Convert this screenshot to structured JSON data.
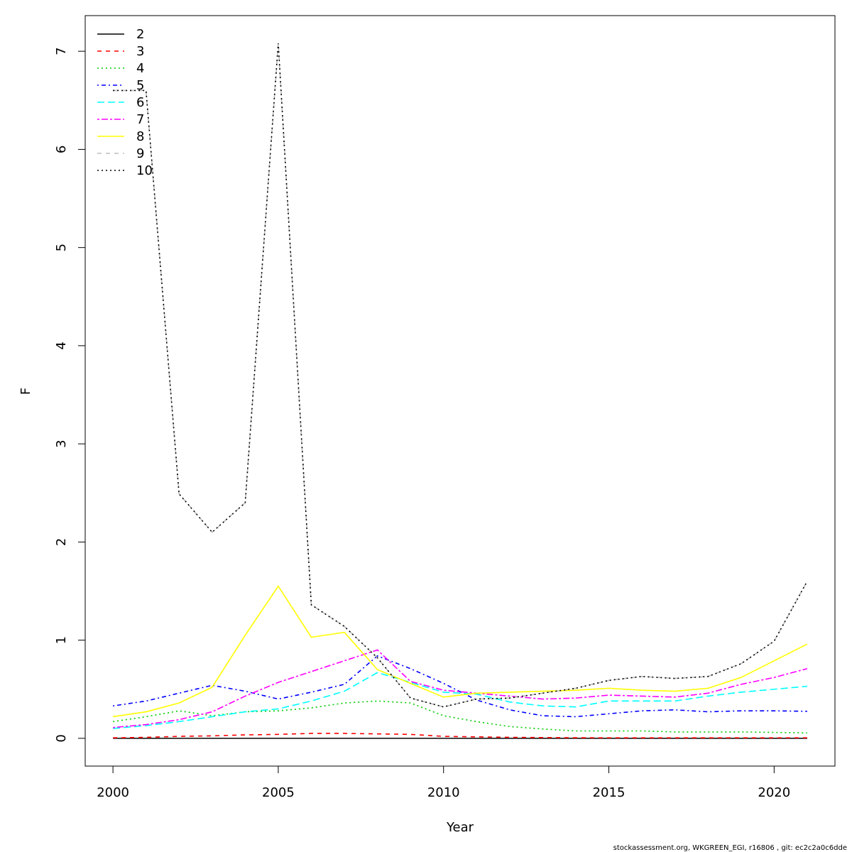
{
  "chart_data": {
    "type": "line",
    "xlabel": "Year",
    "ylabel": "F",
    "footer": "stockassessment.org, WKGREEN_EGI, r16806 , git: ec2c2a0c6dde",
    "x": [
      2000,
      2001,
      2002,
      2003,
      2004,
      2005,
      2006,
      2007,
      2008,
      2009,
      2010,
      2011,
      2012,
      2013,
      2014,
      2015,
      2016,
      2017,
      2018,
      2019,
      2020,
      2021
    ],
    "xlim": [
      1999.16,
      2021.84
    ],
    "xticks": [
      2000,
      2005,
      2010,
      2015,
      2020
    ],
    "ylim": [
      -0.283,
      7.363
    ],
    "yticks": [
      0,
      1,
      2,
      3,
      4,
      5,
      6,
      7
    ],
    "legend": "top-left",
    "series": [
      {
        "name": "2",
        "color": "#000000",
        "linestyle": "solid",
        "values": [
          0,
          0,
          0,
          0,
          0,
          0,
          0,
          0,
          0,
          0,
          0,
          0,
          0,
          0,
          0,
          0,
          0,
          0,
          0,
          0,
          0,
          0
        ]
      },
      {
        "name": "3",
        "color": "#ff0000",
        "linestyle": "dashed",
        "values": [
          0.005,
          0.01,
          0.02,
          0.025,
          0.035,
          0.04,
          0.05,
          0.05,
          0.045,
          0.04,
          0.02,
          0.015,
          0.01,
          0.008,
          0.006,
          0.005,
          0.005,
          0.005,
          0.005,
          0.005,
          0.005,
          0.005
        ]
      },
      {
        "name": "4",
        "color": "#00cd00",
        "linestyle": "dotted",
        "values": [
          0.17,
          0.22,
          0.28,
          0.23,
          0.27,
          0.28,
          0.31,
          0.36,
          0.38,
          0.36,
          0.23,
          0.17,
          0.12,
          0.095,
          0.075,
          0.075,
          0.075,
          0.065,
          0.065,
          0.065,
          0.06,
          0.055
        ]
      },
      {
        "name": "5",
        "color": "#0000ff",
        "linestyle": "dotdash",
        "values": [
          0.33,
          0.38,
          0.46,
          0.54,
          0.48,
          0.4,
          0.47,
          0.55,
          0.84,
          0.71,
          0.56,
          0.39,
          0.29,
          0.23,
          0.22,
          0.25,
          0.28,
          0.29,
          0.27,
          0.28,
          0.28,
          0.275
        ]
      },
      {
        "name": "6",
        "color": "#00ffff",
        "linestyle": "longdash",
        "values": [
          0.1,
          0.13,
          0.17,
          0.22,
          0.27,
          0.3,
          0.38,
          0.48,
          0.67,
          0.57,
          0.47,
          0.45,
          0.37,
          0.33,
          0.32,
          0.38,
          0.38,
          0.38,
          0.43,
          0.47,
          0.5,
          0.53
        ]
      },
      {
        "name": "7",
        "color": "#ff00ff",
        "linestyle": "twodash",
        "values": [
          0.11,
          0.14,
          0.19,
          0.27,
          0.43,
          0.57,
          0.68,
          0.79,
          0.9,
          0.58,
          0.49,
          0.46,
          0.43,
          0.4,
          0.41,
          0.44,
          0.43,
          0.42,
          0.46,
          0.55,
          0.62,
          0.71
        ]
      },
      {
        "name": "8",
        "color": "#ffff00",
        "linestyle": "solid",
        "values": [
          0.22,
          0.27,
          0.36,
          0.52,
          1.05,
          1.55,
          1.03,
          1.08,
          0.7,
          0.56,
          0.42,
          0.46,
          0.47,
          0.48,
          0.49,
          0.51,
          0.49,
          0.48,
          0.51,
          0.62,
          0.79,
          0.96
        ]
      },
      {
        "name": "9",
        "color": "#bebebe",
        "linestyle": "dashed",
        "values": [
          6.6,
          6.6,
          2.49,
          2.1,
          2.4,
          7.08,
          1.36,
          1.14,
          0.82,
          0.41,
          0.32,
          0.4,
          0.41,
          0.46,
          0.51,
          0.59,
          0.63,
          0.61,
          0.63,
          0.76,
          0.99,
          1.6
        ]
      },
      {
        "name": "10",
        "color": "#000000",
        "linestyle": "dotted",
        "values": [
          6.6,
          6.6,
          2.49,
          2.1,
          2.4,
          7.08,
          1.36,
          1.14,
          0.82,
          0.41,
          0.32,
          0.4,
          0.41,
          0.46,
          0.51,
          0.59,
          0.63,
          0.61,
          0.63,
          0.76,
          0.99,
          1.6
        ]
      }
    ]
  }
}
